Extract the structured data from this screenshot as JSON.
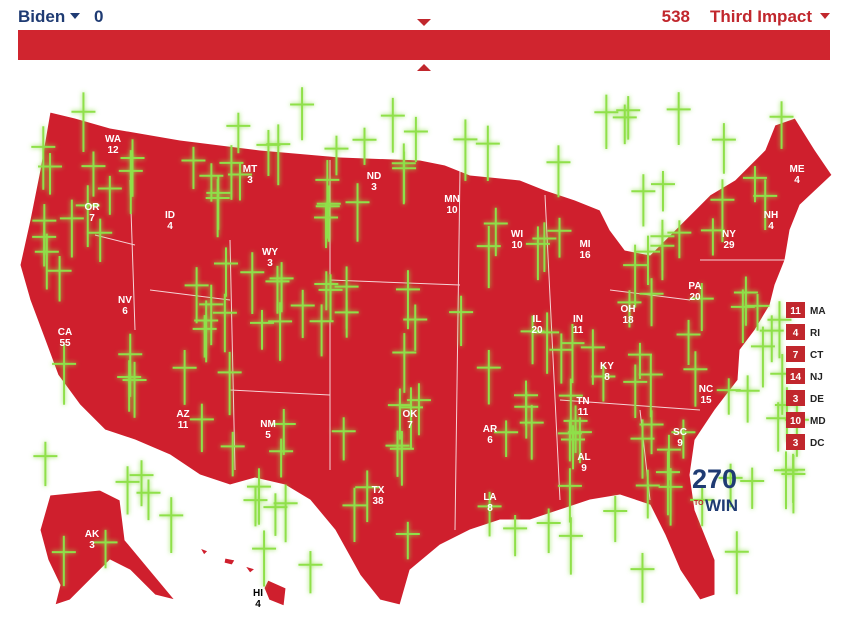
{
  "header": {
    "left_candidate": "Biden",
    "left_votes": 0,
    "right_votes": 538,
    "right_candidate": "Third Impact"
  },
  "states": [
    {
      "abbr": "WA",
      "votes": 12
    },
    {
      "abbr": "OR",
      "votes": 7
    },
    {
      "abbr": "CA",
      "votes": 55
    },
    {
      "abbr": "NV",
      "votes": 6
    },
    {
      "abbr": "ID",
      "votes": 4
    },
    {
      "abbr": "MT",
      "votes": 3
    },
    {
      "abbr": "WY",
      "votes": 3
    },
    {
      "abbr": "ND",
      "votes": 3
    },
    {
      "abbr": "MN",
      "votes": 10
    },
    {
      "abbr": "WI",
      "votes": 10
    },
    {
      "abbr": "MI",
      "votes": 16
    },
    {
      "abbr": "IL",
      "votes": 20
    },
    {
      "abbr": "IN",
      "votes": 11
    },
    {
      "abbr": "OH",
      "votes": 18
    },
    {
      "abbr": "KY",
      "votes": 8
    },
    {
      "abbr": "TN",
      "votes": 11
    },
    {
      "abbr": "AL",
      "votes": 9
    },
    {
      "abbr": "SC",
      "votes": 9
    },
    {
      "abbr": "NC",
      "votes": 15
    },
    {
      "abbr": "OK",
      "votes": 7
    },
    {
      "abbr": "AR",
      "votes": 6
    },
    {
      "abbr": "NM",
      "votes": 5
    },
    {
      "abbr": "AZ",
      "votes": 11
    },
    {
      "abbr": "TX",
      "votes": 38
    },
    {
      "abbr": "LA",
      "votes": 8
    },
    {
      "abbr": "NY",
      "votes": 29
    },
    {
      "abbr": "PA",
      "votes": 20
    },
    {
      "abbr": "NH",
      "votes": 4
    },
    {
      "abbr": "ME",
      "votes": 4
    },
    {
      "abbr": "AK",
      "votes": 3
    },
    {
      "abbr": "HI",
      "votes": 4
    }
  ],
  "small_states": [
    {
      "abbr": "MA",
      "votes": 11
    },
    {
      "abbr": "RI",
      "votes": 4
    },
    {
      "abbr": "CT",
      "votes": 7
    },
    {
      "abbr": "NJ",
      "votes": 14
    },
    {
      "abbr": "DE",
      "votes": 3
    },
    {
      "abbr": "MD",
      "votes": 10
    },
    {
      "abbr": "DC",
      "votes": 3
    }
  ],
  "logo": {
    "number": "270",
    "to": "TO",
    "win": "WIN"
  }
}
